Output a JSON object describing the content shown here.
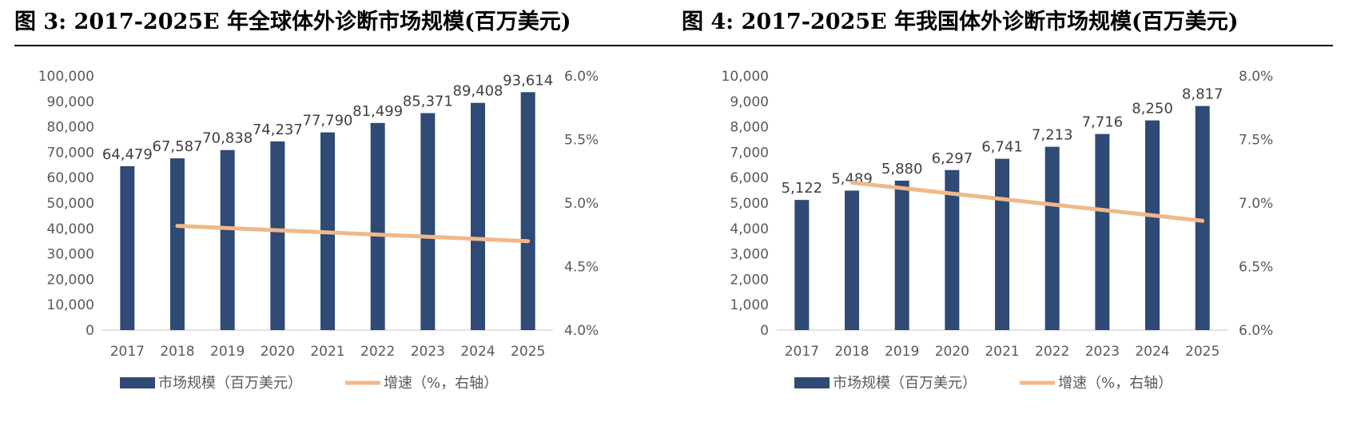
{
  "titles": {
    "left": "图 3: 2017-2025E 年全球体外诊断市场规模(百万美元)",
    "right": "图 4: 2017-2025E 年我国体外诊断市场规模(百万美元)"
  },
  "colors": {
    "bar": "#2E4A75",
    "line": "#F0B889",
    "axis": "#D9D9D9",
    "tick_text": "#595959"
  },
  "chart_data": [
    {
      "type": "bar",
      "categories": [
        "2017",
        "2018",
        "2019",
        "2020",
        "2021",
        "2022",
        "2023",
        "2024",
        "2025"
      ],
      "series": [
        {
          "name": "市场规模（百万美元）",
          "type": "bar",
          "axis": "left",
          "values": [
            64479,
            67587,
            70838,
            74237,
            77790,
            81499,
            85371,
            89408,
            93614
          ],
          "labels": [
            "64,479",
            "67,587",
            "70,838",
            "74,237",
            "77,790",
            "81,499",
            "85,371",
            "89,408",
            "93,614"
          ]
        },
        {
          "name": "增速（%，右轴）",
          "type": "line",
          "axis": "right",
          "x": [
            "2018",
            "2025"
          ],
          "values": [
            4.82,
            4.7
          ]
        }
      ],
      "y_left": {
        "lim": [
          0,
          100000
        ],
        "ticks": [
          "0",
          "10,000",
          "20,000",
          "30,000",
          "40,000",
          "50,000",
          "60,000",
          "70,000",
          "80,000",
          "90,000",
          "100,000"
        ]
      },
      "y_right": {
        "lim": [
          4.0,
          6.0
        ],
        "ticks": [
          "4.0%",
          "4.5%",
          "5.0%",
          "5.5%",
          "6.0%"
        ]
      },
      "legend": "bottom",
      "grid": false
    },
    {
      "type": "bar",
      "categories": [
        "2017",
        "2018",
        "2019",
        "2020",
        "2021",
        "2022",
        "2023",
        "2024",
        "2025"
      ],
      "series": [
        {
          "name": "市场规模（百万美元）",
          "type": "bar",
          "axis": "left",
          "values": [
            5122,
            5489,
            5880,
            6297,
            6741,
            7213,
            7716,
            8250,
            8817
          ],
          "labels": [
            "5,122",
            "5,489",
            "5,880",
            "6,297",
            "6,741",
            "7,213",
            "7,716",
            "8,250",
            "8,817"
          ]
        },
        {
          "name": "增速（%，右轴）",
          "type": "line",
          "axis": "right",
          "x": [
            "2018",
            "2025"
          ],
          "values": [
            7.16,
            6.86
          ]
        }
      ],
      "y_left": {
        "lim": [
          0,
          10000
        ],
        "ticks": [
          "0",
          "1,000",
          "2,000",
          "3,000",
          "4,000",
          "5,000",
          "6,000",
          "7,000",
          "8,000",
          "9,000",
          "10,000"
        ]
      },
      "y_right": {
        "lim": [
          6.0,
          8.0
        ],
        "ticks": [
          "6.0%",
          "6.5%",
          "7.0%",
          "7.5%",
          "8.0%"
        ]
      },
      "legend": "bottom",
      "grid": false
    }
  ]
}
